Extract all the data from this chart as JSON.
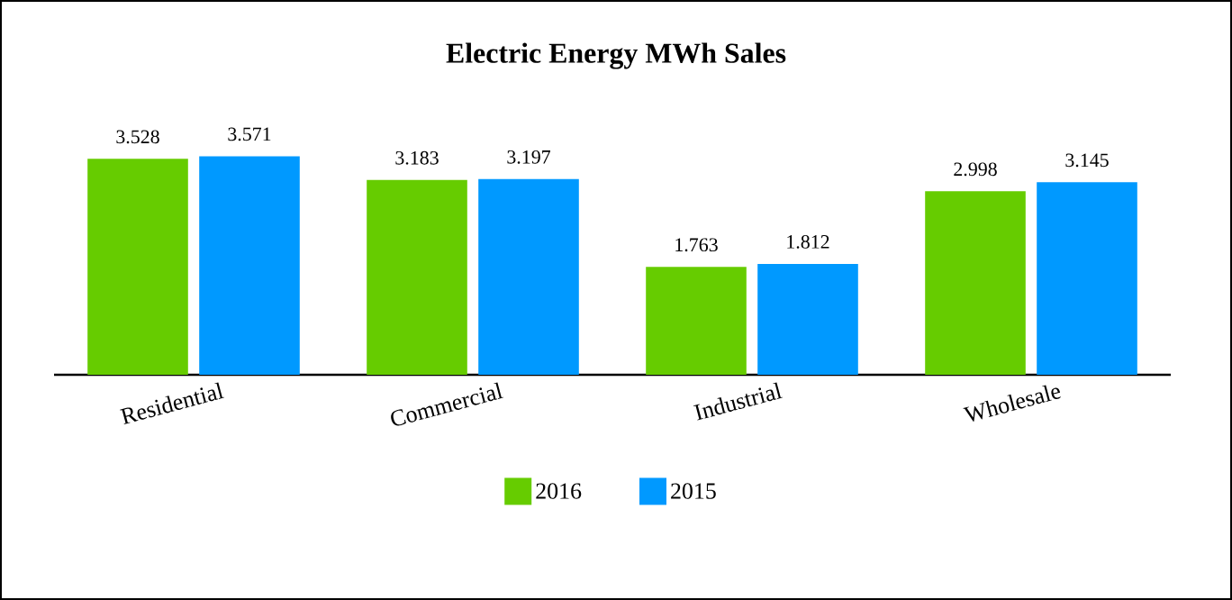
{
  "chart_data": {
    "type": "bar",
    "title": "Electric Energy MWh Sales",
    "categories": [
      "Residential",
      "Commercial",
      "Industrial",
      "Wholesale"
    ],
    "series": [
      {
        "name": "2016",
        "color": "#66cc00",
        "values": [
          3.528,
          3.183,
          1.763,
          2.998
        ]
      },
      {
        "name": "2015",
        "color": "#0099ff",
        "values": [
          3.571,
          3.197,
          1.812,
          3.145
        ]
      }
    ],
    "tick_labels": "x",
    "data_labels": true,
    "legend": "bottom"
  }
}
